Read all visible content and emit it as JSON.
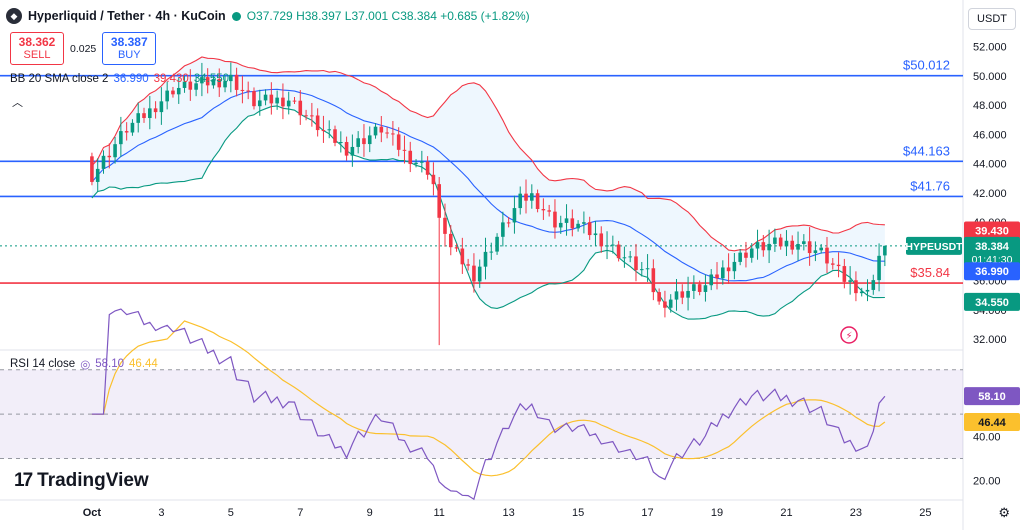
{
  "header": {
    "symbol_title": "Hyperliquid / Tether · 4h · KuCoin",
    "open": "O37.729",
    "high": "H38.397",
    "low": "L37.001",
    "close": "C38.384",
    "change": "+0.685 (+1.82%)"
  },
  "trade": {
    "sell_price": "38.362",
    "sell_label": "SELL",
    "spread": "0.025",
    "buy_price": "38.387",
    "buy_label": "BUY"
  },
  "bb_indicator": {
    "label": "BB 20 SMA close 2",
    "basis": "36.990",
    "upper": "39.430",
    "lower": "34.550"
  },
  "rsi_indicator": {
    "label": "RSI 14 close",
    "value": "58.10",
    "ma": "46.44"
  },
  "currency": "USDT",
  "brand": "TradingView",
  "colors": {
    "up": "#089981",
    "down": "#f23645",
    "basis": "#2962ff",
    "bb_upper": "#f23645",
    "bb_lower": "#089981",
    "hline_blue": "#2962ff",
    "hline_red": "#f23645",
    "rsi": "#7e57c2",
    "rsi_ma": "#fbc02d"
  },
  "chart_data": {
    "type": "candlestick",
    "symbol": "HYPEUSDT",
    "interval": "4h",
    "y_ticks": [
      "32.000",
      "34.000",
      "36.000",
      "38.000",
      "40.000",
      "42.000",
      "44.000",
      "46.000",
      "48.000",
      "50.000",
      "52.000"
    ],
    "ylim": [
      31.4,
      53.0
    ],
    "x_ticks": [
      {
        "label": "Oct",
        "idx": 0
      },
      {
        "label": "3",
        "idx": 12
      },
      {
        "label": "5",
        "idx": 24
      },
      {
        "label": "7",
        "idx": 36
      },
      {
        "label": "9",
        "idx": 48
      },
      {
        "label": "11",
        "idx": 60
      },
      {
        "label": "13",
        "idx": 72
      },
      {
        "label": "15",
        "idx": 84
      },
      {
        "label": "17",
        "idx": 96
      },
      {
        "label": "19",
        "idx": 108
      },
      {
        "label": "21",
        "idx": 120
      },
      {
        "label": "23",
        "idx": 132
      },
      {
        "label": "25",
        "idx": 144
      }
    ],
    "xlim": [
      -14.5,
      150.5
    ],
    "horizontal_lines": [
      {
        "price": 50.012,
        "label": "$50.012",
        "color": "blue"
      },
      {
        "price": 44.163,
        "label": "$44.163",
        "color": "blue"
      },
      {
        "price": 41.76,
        "label": "$41.76",
        "color": "blue"
      },
      {
        "price": 35.84,
        "label": "$35.84",
        "color": "red"
      }
    ],
    "price_labels": [
      {
        "text": "39.430",
        "price": 39.43,
        "kind": "bb_upper"
      },
      {
        "text": "38.384",
        "price": 38.384,
        "kind": "last",
        "symbol": "HYPEUSDT",
        "countdown": "01:41:30"
      },
      {
        "text": "36.990",
        "price": 36.99,
        "kind": "basis"
      },
      {
        "text": "34.550",
        "price": 34.55,
        "kind": "bb_lower"
      }
    ],
    "candles": [],
    "bb_upper": [],
    "bb_basis": [],
    "bb_lower": [],
    "rsi": {
      "ylim": [
        14,
        78
      ],
      "y_ticks": [
        "20.00",
        "40.00",
        "60.00"
      ],
      "band": [
        30,
        70
      ],
      "mid": 50,
      "values": [],
      "ma": []
    }
  }
}
